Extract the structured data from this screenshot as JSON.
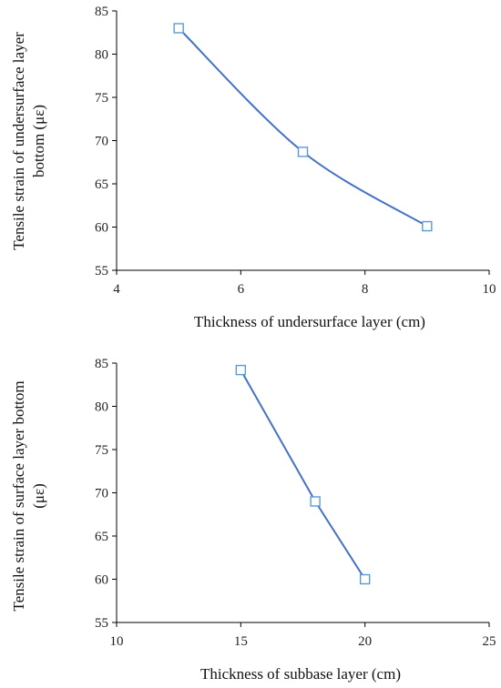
{
  "colors": {
    "line": "#4472C4",
    "marker_edge": "#5B9BD5",
    "axis": "#000000"
  },
  "chart_data": [
    {
      "type": "line",
      "xlabel": "Thickness of undersurface layer (cm)",
      "ylabel_lines": [
        "Tensile strain of undersurface layer",
        "bottom (με)"
      ],
      "xlim": [
        4,
        10
      ],
      "ylim": [
        55,
        85
      ],
      "x_ticks": [
        "4",
        "6",
        "8",
        "10"
      ],
      "y_ticks": [
        "55",
        "60",
        "65",
        "70",
        "75",
        "80",
        "85"
      ],
      "smooth": true,
      "marker": "square",
      "grid": false,
      "series": [
        {
          "x": [
            5,
            7,
            9
          ],
          "y": [
            83,
            68.7,
            60.1
          ]
        }
      ]
    },
    {
      "type": "line",
      "xlabel": "Thickness of subbase layer (cm)",
      "ylabel_lines": [
        "Tensile strain of surface layer bottom",
        "(με)"
      ],
      "xlim": [
        10,
        25
      ],
      "ylim": [
        55,
        85
      ],
      "x_ticks": [
        "10",
        "15",
        "20",
        "25"
      ],
      "y_ticks": [
        "55",
        "60",
        "65",
        "70",
        "75",
        "80",
        "85"
      ],
      "smooth": false,
      "marker": "square",
      "grid": false,
      "series": [
        {
          "x": [
            15,
            18,
            20
          ],
          "y": [
            84.2,
            69,
            60
          ]
        }
      ]
    }
  ]
}
